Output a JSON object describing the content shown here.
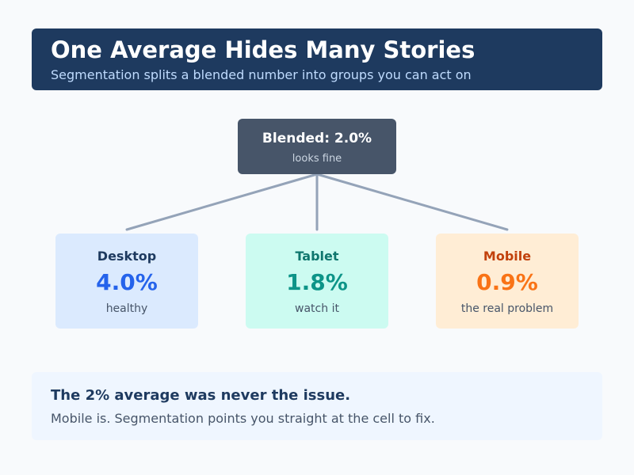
{
  "header": {
    "title": "One Average Hides Many Stories",
    "subtitle": "Segmentation splits a blended number into groups you can act on"
  },
  "blended": {
    "label": "Blended: 2.0%",
    "note": "looks fine"
  },
  "segments": [
    {
      "name": "Desktop",
      "value": "4.0%",
      "note": "healthy",
      "bg": "#dbeafe",
      "name_color": "#1e3a5f",
      "value_color": "#2563eb"
    },
    {
      "name": "Tablet",
      "value": "1.8%",
      "note": "watch it",
      "bg": "#ccfbf1",
      "name_color": "#0f766e",
      "value_color": "#0d9488"
    },
    {
      "name": "Mobile",
      "value": "0.9%",
      "note": "the real problem",
      "bg": "#ffedd5",
      "name_color": "#c2410c",
      "value_color": "#f97316"
    }
  ],
  "footer": {
    "headline": "The 2% average was never the issue.",
    "body": "Mobile is. Segmentation points you straight at the cell to fix."
  },
  "colors": {
    "header_bg": "#1e3a5f",
    "connector": "#94a3b8"
  }
}
